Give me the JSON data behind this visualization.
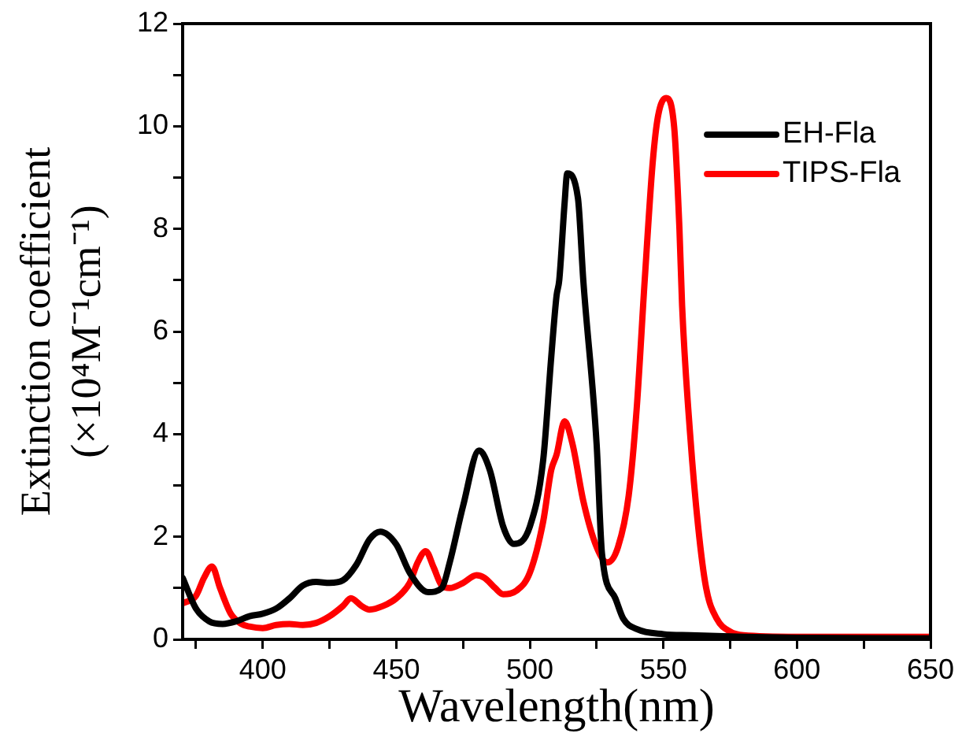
{
  "chart_data": {
    "type": "line",
    "xlabel": "Wavelength(nm)",
    "ylabel": "Extinction coefficient\n(×10⁴M⁻¹cm⁻¹)",
    "xlim": [
      370,
      650
    ],
    "ylim": [
      0,
      12
    ],
    "xticks": [
      {
        "value": 375,
        "label": null
      },
      400,
      {
        "value": 425,
        "label": null
      },
      450,
      {
        "value": 475,
        "label": null
      },
      500,
      {
        "value": 525,
        "label": null
      },
      550,
      {
        "value": 575,
        "label": null
      },
      600,
      {
        "value": 625,
        "label": null
      },
      650
    ],
    "yticks": [
      0,
      {
        "value": 1,
        "label": null
      },
      2,
      {
        "value": 3,
        "label": null
      },
      4,
      {
        "value": 5,
        "label": null
      },
      6,
      {
        "value": 7,
        "label": null
      },
      8,
      {
        "value": 9,
        "label": null
      },
      10,
      {
        "value": 11,
        "label": null
      },
      12
    ],
    "grid": false,
    "legend": "top right",
    "marker": "none",
    "line_style": "solid",
    "series": [
      {
        "name": "EH-Fla",
        "color": "#000000",
        "x": [
          370,
          375,
          380,
          385,
          390,
          395,
          400,
          405,
          410,
          415,
          420,
          425,
          430,
          435,
          440,
          444,
          450,
          455,
          462,
          467,
          470,
          475,
          481,
          485,
          490,
          494,
          500,
          505,
          508,
          510,
          511,
          513,
          514,
          518,
          520,
          525,
          527,
          532,
          535,
          540,
          550,
          560,
          580,
          600,
          650
        ],
        "values": [
          1.2,
          0.6,
          0.35,
          0.3,
          0.35,
          0.45,
          0.5,
          0.6,
          0.8,
          1.05,
          1.12,
          1.1,
          1.15,
          1.45,
          1.95,
          2.1,
          1.85,
          1.3,
          0.92,
          1.0,
          1.5,
          2.6,
          3.68,
          3.3,
          2.2,
          1.86,
          2.2,
          3.5,
          5.5,
          6.7,
          7.0,
          8.5,
          9.08,
          8.6,
          7.0,
          3.8,
          1.67,
          0.8,
          0.4,
          0.2,
          0.1,
          0.08,
          0.05,
          0.03,
          0.02
        ]
      },
      {
        "name": "TIPS-Fla",
        "color": "#ff0000",
        "x": [
          370,
          375,
          378,
          381,
          384,
          388,
          392,
          395,
          400,
          405,
          410,
          415,
          420,
          425,
          430,
          433,
          437,
          440,
          445,
          450,
          455,
          458,
          461,
          464,
          467,
          470,
          475,
          480,
          483,
          487,
          490,
          495,
          500,
          505,
          508,
          510,
          513,
          516,
          520,
          525,
          529,
          533,
          537,
          540,
          543,
          546,
          548,
          551,
          554,
          556,
          557,
          560,
          563,
          566,
          570,
          575,
          580,
          600,
          650
        ],
        "values": [
          0.7,
          0.85,
          1.2,
          1.42,
          1.0,
          0.5,
          0.3,
          0.25,
          0.22,
          0.28,
          0.3,
          0.28,
          0.32,
          0.45,
          0.65,
          0.8,
          0.65,
          0.58,
          0.65,
          0.8,
          1.1,
          1.5,
          1.72,
          1.4,
          1.05,
          1.0,
          1.1,
          1.25,
          1.2,
          1.0,
          0.88,
          0.95,
          1.3,
          2.3,
          3.3,
          3.6,
          4.25,
          3.8,
          2.7,
          1.8,
          1.5,
          1.8,
          2.8,
          4.5,
          7.0,
          9.3,
          10.2,
          10.55,
          10.0,
          8.0,
          6.5,
          4.0,
          2.2,
          1.0,
          0.4,
          0.15,
          0.08,
          0.05,
          0.05
        ]
      }
    ]
  }
}
